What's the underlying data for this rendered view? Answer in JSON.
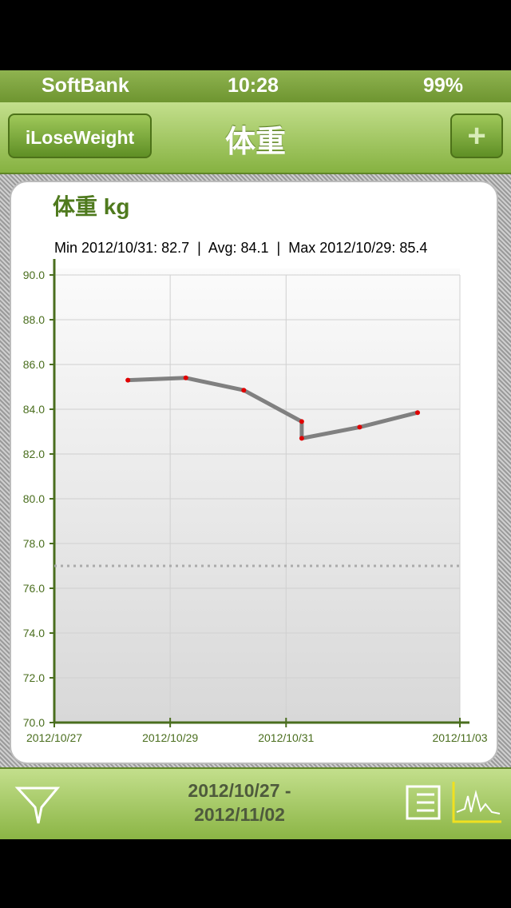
{
  "status_bar": {
    "carrier": "SoftBank",
    "time": "10:28",
    "battery": "99%"
  },
  "nav_bar": {
    "back_button": "iLoseWeight",
    "title": "体重"
  },
  "chart_data": {
    "type": "line",
    "title": "体重 kg",
    "subtitle": "Min 2012/10/31: 82.7  |  Avg: 84.1  |  Max 2012/10/29: 85.4",
    "x": [
      "2012/10/28",
      "2012/10/29",
      "2012/10/30",
      "2012/10/31",
      "2012/10/31",
      "2012/11/01",
      "2012/11/02"
    ],
    "series": [
      {
        "name": "体重",
        "color": "#808080",
        "values": [
          85.3,
          85.4,
          84.85,
          83.45,
          82.7,
          83.2,
          83.85
        ]
      }
    ],
    "reference_line": 77,
    "xlim": [
      "2012/10/27",
      "2012/11/03"
    ],
    "xticks": [
      "2012/10/27",
      "2012/10/29",
      "2012/10/31",
      "2012/11/03"
    ],
    "ylim": [
      70,
      90
    ],
    "yticks": [
      {
        "value": 70,
        "label": "70.0"
      },
      {
        "value": 72,
        "label": "72.0"
      },
      {
        "value": 74,
        "label": "74.0"
      },
      {
        "value": 76,
        "label": "76.0"
      },
      {
        "value": 78,
        "label": "78.0"
      },
      {
        "value": 80,
        "label": "80.0"
      },
      {
        "value": 82,
        "label": "82.0"
      },
      {
        "value": 84,
        "label": "84.0"
      },
      {
        "value": 86,
        "label": "86.0"
      },
      {
        "value": 88,
        "label": "88.0"
      },
      {
        "value": 90,
        "label": "90.0"
      }
    ],
    "grid": true
  },
  "footer": {
    "date_range_start": "2012/10/27 -",
    "date_range_end": "2012/11/02"
  }
}
